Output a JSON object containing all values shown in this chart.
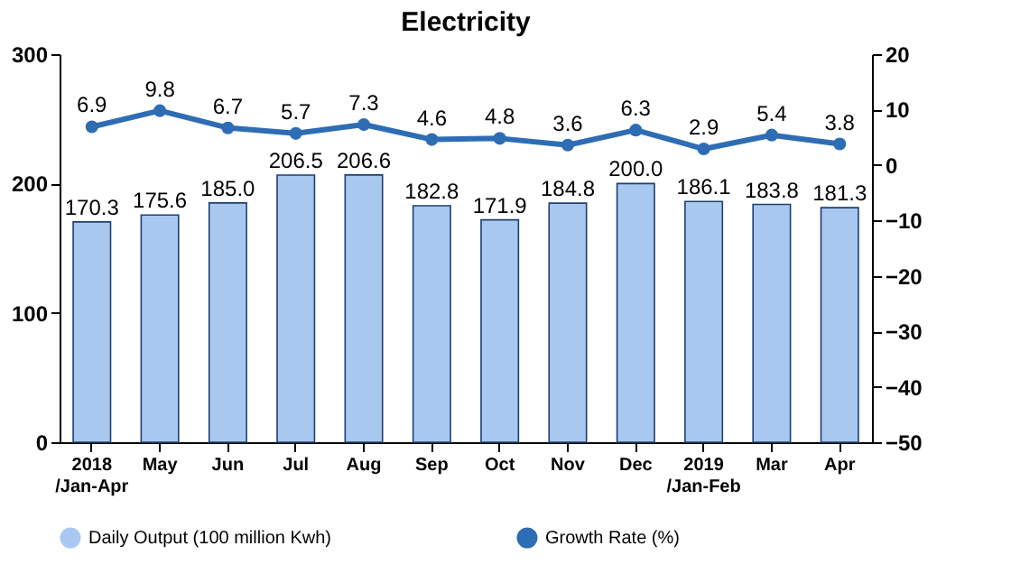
{
  "chart_data": {
    "type": "bar",
    "title": "Electricity",
    "categories": [
      "2018\n/Jan-Apr",
      "May",
      "Jun",
      "Jul",
      "Aug",
      "Sep",
      "Oct",
      "Nov",
      "Dec",
      "2019\n/Jan-Feb",
      "Mar",
      "Apr"
    ],
    "series": [
      {
        "name": "Daily Output (100 million Kwh)",
        "color": "#a9c8f0",
        "values": [
          170.3,
          175.6,
          185.0,
          206.5,
          206.6,
          182.8,
          171.9,
          184.8,
          200.0,
          186.1,
          183.8,
          181.3
        ],
        "value_labels": [
          "170.3",
          "175.6",
          "185.0",
          "206.5",
          "206.6",
          "182.8",
          "171.9",
          "184.8",
          "200.0",
          "186.1",
          "183.8",
          "181.3"
        ]
      },
      {
        "name": "Growth Rate (%)",
        "type": "line",
        "axis": "y2",
        "color": "#2e6db4",
        "values": [
          6.9,
          9.8,
          6.7,
          5.7,
          7.3,
          4.6,
          4.8,
          3.6,
          6.3,
          2.9,
          5.4,
          3.8
        ],
        "value_labels": [
          "6.9",
          "9.8",
          "6.7",
          "5.7",
          "7.3",
          "4.6",
          "4.8",
          "3.6",
          "6.3",
          "2.9",
          "5.4",
          "3.8"
        ]
      }
    ],
    "ylim": [
      0,
      300
    ],
    "yticks": [
      0,
      100,
      200,
      300
    ],
    "y2lim": [
      -50,
      20
    ],
    "y2ticks": [
      -50,
      -40,
      -30,
      -20,
      -10,
      0,
      10,
      20
    ],
    "grid": false,
    "legend": "bottom",
    "marker": "circle",
    "line_style": "solid"
  }
}
